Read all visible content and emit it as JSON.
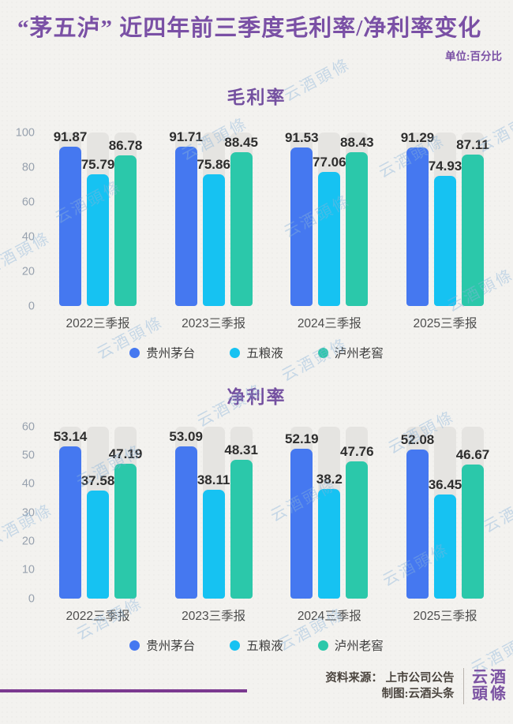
{
  "header": {
    "title": "“茅五泸” 近四年前三季度毛利率/净利率变化",
    "unit": "单位:百分比"
  },
  "watermark_text": "云酒頭條",
  "chart_data": [
    {
      "type": "bar",
      "title": "毛利率",
      "categories": [
        "2022三季报",
        "2023三季报",
        "2024三季报",
        "2025三季报"
      ],
      "series": [
        {
          "name": "贵州茅台",
          "color": "#4578f0",
          "values": [
            91.87,
            91.71,
            91.53,
            91.29
          ]
        },
        {
          "name": "五粮液",
          "color": "#16c2f2",
          "values": [
            75.79,
            75.86,
            77.06,
            74.93
          ]
        },
        {
          "name": "泸州老窖",
          "color": "#2bc8aa",
          "values": [
            86.78,
            88.45,
            88.43,
            87.11
          ]
        }
      ],
      "xlabel": "",
      "ylabel": "",
      "ylim": [
        0,
        100
      ],
      "yticks": [
        0,
        20,
        40,
        60,
        80,
        100
      ],
      "grid": false,
      "legend_position": "bottom",
      "track_color": "#e5e4e1"
    },
    {
      "type": "bar",
      "title": "净利率",
      "categories": [
        "2022三季报",
        "2023三季报",
        "2024三季报",
        "2025三季报"
      ],
      "series": [
        {
          "name": "贵州茅台",
          "color": "#4578f0",
          "values": [
            53.14,
            53.09,
            52.19,
            52.08
          ]
        },
        {
          "name": "五粮液",
          "color": "#16c2f2",
          "values": [
            37.58,
            38.11,
            38.2,
            36.45
          ]
        },
        {
          "name": "泸州老窖",
          "color": "#2bc8aa",
          "values": [
            47.19,
            48.31,
            47.76,
            46.67
          ]
        }
      ],
      "xlabel": "",
      "ylabel": "",
      "ylim": [
        0,
        60
      ],
      "yticks": [
        0,
        10,
        20,
        30,
        40,
        50,
        60
      ],
      "grid": false,
      "legend_position": "bottom",
      "track_color": "#e5e4e1"
    }
  ],
  "footer": {
    "source_label": "资料来源： 上市公司公告",
    "credit_label": "制图:云酒头条",
    "logo_line1": "云酒",
    "logo_line2": "頭條"
  }
}
